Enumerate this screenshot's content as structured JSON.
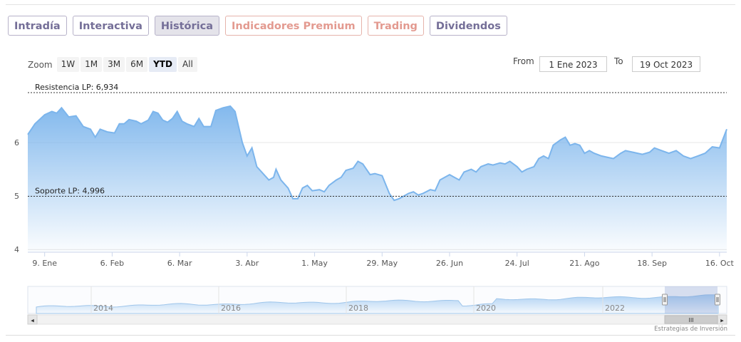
{
  "tabs": [
    {
      "label": "Intradía",
      "state": "normal"
    },
    {
      "label": "Interactiva",
      "state": "normal"
    },
    {
      "label": "Histórica",
      "state": "active"
    },
    {
      "label": "Indicadores Premium",
      "state": "premium"
    },
    {
      "label": "Trading",
      "state": "premium"
    },
    {
      "label": "Dividendos",
      "state": "normal"
    }
  ],
  "zoom": {
    "label": "Zoom",
    "buttons": [
      "1W",
      "1M",
      "3M",
      "6M",
      "YTD",
      "All"
    ],
    "selected": "YTD"
  },
  "range": {
    "from_label": "From",
    "from_value": "1 Ene 2023",
    "to_label": "To",
    "to_value": "19 Oct 2023"
  },
  "credit": "Estrategias de Inversión",
  "colors": {
    "line": "#7cb5ec",
    "fill_top": "#7cb5ec",
    "fill_bottom": "#ffffff",
    "ref_line": "#333333",
    "tab_text": "#756f98",
    "premium_text": "#e39a90"
  },
  "chart_data": {
    "type": "area",
    "title": "",
    "xlabel": "",
    "ylabel": "",
    "ylim": [
      3.95,
      7.2
    ],
    "yticks": [
      4,
      5,
      6
    ],
    "x_range": [
      "2023-01-02",
      "2023-10-19"
    ],
    "xticks": [
      {
        "date": "2023-01-09",
        "label": "9. Ene"
      },
      {
        "date": "2023-02-06",
        "label": "6. Feb"
      },
      {
        "date": "2023-03-06",
        "label": "6. Mar"
      },
      {
        "date": "2023-04-03",
        "label": "3. Abr"
      },
      {
        "date": "2023-05-01",
        "label": "1. May"
      },
      {
        "date": "2023-05-29",
        "label": "29. May"
      },
      {
        "date": "2023-06-26",
        "label": "26. Jun"
      },
      {
        "date": "2023-07-24",
        "label": "24. Jul"
      },
      {
        "date": "2023-08-21",
        "label": "21. Ago"
      },
      {
        "date": "2023-09-18",
        "label": "18. Sep"
      },
      {
        "date": "2023-10-16",
        "label": "16. Oct"
      }
    ],
    "reference_lines": [
      {
        "label": "Resistencia LP: 6,934",
        "value": 6.934
      },
      {
        "label": "Soporte LP: 4,996",
        "value": 4.996
      }
    ],
    "series": [
      {
        "name": "",
        "points": [
          [
            "2023-01-02",
            6.15
          ],
          [
            "2023-01-05",
            6.35
          ],
          [
            "2023-01-09",
            6.52
          ],
          [
            "2023-01-12",
            6.58
          ],
          [
            "2023-01-14",
            6.55
          ],
          [
            "2023-01-16",
            6.65
          ],
          [
            "2023-01-19",
            6.48
          ],
          [
            "2023-01-22",
            6.5
          ],
          [
            "2023-01-25",
            6.3
          ],
          [
            "2023-01-28",
            6.25
          ],
          [
            "2023-01-30",
            6.1
          ],
          [
            "2023-02-01",
            6.25
          ],
          [
            "2023-02-04",
            6.2
          ],
          [
            "2023-02-07",
            6.18
          ],
          [
            "2023-02-09",
            6.35
          ],
          [
            "2023-02-11",
            6.35
          ],
          [
            "2023-02-13",
            6.43
          ],
          [
            "2023-02-16",
            6.4
          ],
          [
            "2023-02-18",
            6.35
          ],
          [
            "2023-02-21",
            6.42
          ],
          [
            "2023-02-23",
            6.58
          ],
          [
            "2023-02-25",
            6.55
          ],
          [
            "2023-02-27",
            6.42
          ],
          [
            "2023-03-01",
            6.38
          ],
          [
            "2023-03-03",
            6.45
          ],
          [
            "2023-03-05",
            6.58
          ],
          [
            "2023-03-07",
            6.4
          ],
          [
            "2023-03-09",
            6.35
          ],
          [
            "2023-03-12",
            6.3
          ],
          [
            "2023-03-14",
            6.45
          ],
          [
            "2023-03-16",
            6.3
          ],
          [
            "2023-03-19",
            6.3
          ],
          [
            "2023-03-21",
            6.6
          ],
          [
            "2023-03-24",
            6.65
          ],
          [
            "2023-03-27",
            6.68
          ],
          [
            "2023-03-29",
            6.58
          ],
          [
            "2023-04-01",
            6.0
          ],
          [
            "2023-04-03",
            5.75
          ],
          [
            "2023-04-05",
            5.9
          ],
          [
            "2023-04-07",
            5.55
          ],
          [
            "2023-04-10",
            5.4
          ],
          [
            "2023-04-12",
            5.3
          ],
          [
            "2023-04-14",
            5.35
          ],
          [
            "2023-04-15",
            5.5
          ],
          [
            "2023-04-17",
            5.3
          ],
          [
            "2023-04-20",
            5.15
          ],
          [
            "2023-04-22",
            4.95
          ],
          [
            "2023-04-24",
            4.95
          ],
          [
            "2023-04-26",
            5.15
          ],
          [
            "2023-04-28",
            5.2
          ],
          [
            "2023-04-30",
            5.1
          ],
          [
            "2023-05-03",
            5.12
          ],
          [
            "2023-05-05",
            5.08
          ],
          [
            "2023-05-07",
            5.2
          ],
          [
            "2023-05-10",
            5.3
          ],
          [
            "2023-05-12",
            5.35
          ],
          [
            "2023-05-14",
            5.48
          ],
          [
            "2023-05-17",
            5.52
          ],
          [
            "2023-05-19",
            5.65
          ],
          [
            "2023-05-21",
            5.6
          ],
          [
            "2023-05-24",
            5.4
          ],
          [
            "2023-05-26",
            5.42
          ],
          [
            "2023-05-29",
            5.38
          ],
          [
            "2023-06-01",
            5.05
          ],
          [
            "2023-06-03",
            4.92
          ],
          [
            "2023-06-05",
            4.95
          ],
          [
            "2023-06-07",
            5.0
          ],
          [
            "2023-06-09",
            5.05
          ],
          [
            "2023-06-11",
            5.08
          ],
          [
            "2023-06-13",
            5.02
          ],
          [
            "2023-06-15",
            5.05
          ],
          [
            "2023-06-18",
            5.12
          ],
          [
            "2023-06-20",
            5.1
          ],
          [
            "2023-06-22",
            5.3
          ],
          [
            "2023-06-24",
            5.35
          ],
          [
            "2023-06-26",
            5.4
          ],
          [
            "2023-06-28",
            5.35
          ],
          [
            "2023-06-30",
            5.3
          ],
          [
            "2023-07-02",
            5.45
          ],
          [
            "2023-07-05",
            5.5
          ],
          [
            "2023-07-07",
            5.45
          ],
          [
            "2023-07-09",
            5.55
          ],
          [
            "2023-07-12",
            5.6
          ],
          [
            "2023-07-14",
            5.58
          ],
          [
            "2023-07-17",
            5.62
          ],
          [
            "2023-07-19",
            5.6
          ],
          [
            "2023-07-21",
            5.65
          ],
          [
            "2023-07-24",
            5.55
          ],
          [
            "2023-07-26",
            5.45
          ],
          [
            "2023-07-28",
            5.5
          ],
          [
            "2023-07-31",
            5.55
          ],
          [
            "2023-08-02",
            5.7
          ],
          [
            "2023-08-04",
            5.75
          ],
          [
            "2023-08-06",
            5.7
          ],
          [
            "2023-08-08",
            5.95
          ],
          [
            "2023-08-11",
            6.05
          ],
          [
            "2023-08-13",
            6.1
          ],
          [
            "2023-08-15",
            5.95
          ],
          [
            "2023-08-17",
            5.98
          ],
          [
            "2023-08-19",
            5.95
          ],
          [
            "2023-08-21",
            5.8
          ],
          [
            "2023-08-23",
            5.85
          ],
          [
            "2023-08-25",
            5.8
          ],
          [
            "2023-08-28",
            5.75
          ],
          [
            "2023-08-31",
            5.72
          ],
          [
            "2023-09-02",
            5.7
          ],
          [
            "2023-09-05",
            5.8
          ],
          [
            "2023-09-07",
            5.85
          ],
          [
            "2023-09-10",
            5.82
          ],
          [
            "2023-09-12",
            5.8
          ],
          [
            "2023-09-14",
            5.78
          ],
          [
            "2023-09-17",
            5.82
          ],
          [
            "2023-09-19",
            5.9
          ],
          [
            "2023-09-22",
            5.85
          ],
          [
            "2023-09-25",
            5.8
          ],
          [
            "2023-09-28",
            5.85
          ],
          [
            "2023-10-01",
            5.75
          ],
          [
            "2023-10-04",
            5.7
          ],
          [
            "2023-10-07",
            5.75
          ],
          [
            "2023-10-10",
            5.8
          ],
          [
            "2023-10-13",
            5.92
          ],
          [
            "2023-10-16",
            5.9
          ],
          [
            "2023-10-19",
            6.25
          ]
        ]
      }
    ]
  },
  "navigator": {
    "ticks": [
      "2014",
      "2016",
      "2018",
      "2020",
      "2022"
    ],
    "scroll_grip": "III",
    "left_arrow": "◂",
    "right_arrow": "▸"
  }
}
